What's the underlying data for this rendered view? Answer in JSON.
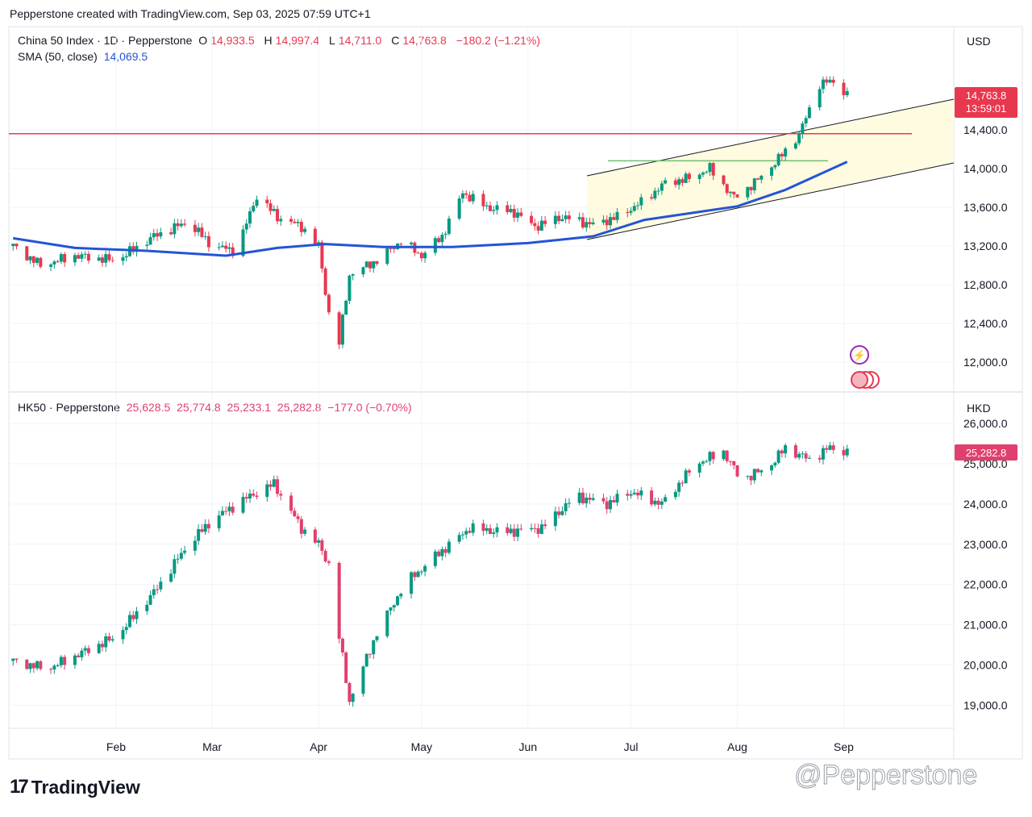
{
  "header": "Pepperstone created with TradingView.com, Sep 03, 2025 07:59 UTC+1",
  "branding": {
    "logo_text": "TradingView",
    "watermark": "@Pepperstone"
  },
  "colors": {
    "up": "#089981",
    "down": "#e8384f",
    "hk_down": "#e0406e",
    "sma": "#2454d6",
    "resistance": "#e8384f",
    "support": "#6fbf73",
    "channel_fill": "#fffbe0"
  },
  "top_panel": {
    "symbol": "China 50 Index · 1D · Pepperstone",
    "o_label": "O",
    "o": "14,933.5",
    "h_label": "H",
    "h": "14,997.4",
    "l_label": "L",
    "l": "14,711.0",
    "c_label": "C",
    "c": "14,763.8",
    "change": "−180.2 (−1.21%)",
    "sma_label": "SMA (50, close)",
    "sma_value": "14,069.5",
    "currency": "USD",
    "last_price": "14,763.8",
    "countdown": "13:59:01",
    "y_ticks": [
      "14,400.0",
      "14,000.0",
      "13,600.0",
      "13,200.0",
      "12,800.0",
      "12,400.0",
      "12,000.0"
    ],
    "resistance_level": 14360,
    "flag_level": 14080
  },
  "bottom_panel": {
    "symbol": "HK50 · Pepperstone",
    "o": "25,628.5",
    "h": "25,774.8",
    "l": "25,233.1",
    "c": "25,282.8",
    "change": "−177.0 (−0.70%)",
    "currency": "HKD",
    "last_price": "25,282.8",
    "y_ticks": [
      "26,000.0",
      "25,000.0",
      "24,000.0",
      "23,000.0",
      "22,000.0",
      "21,000.0",
      "20,000.0",
      "19,000.0"
    ]
  },
  "x_axis": {
    "labels": [
      "Feb",
      "Mar",
      "Apr",
      "May",
      "Jun",
      "Jul",
      "Aug",
      "Sep"
    ]
  },
  "chart_data": [
    {
      "type": "candlestick",
      "panel": "China 50 Index",
      "y_range": [
        11800,
        15000
      ],
      "close_points": [
        [
          "2025-01-02",
          13200
        ],
        [
          "2025-01-10",
          13000
        ],
        [
          "2025-01-20",
          13100
        ],
        [
          "2025-02-01",
          13050
        ],
        [
          "2025-02-12",
          13300
        ],
        [
          "2025-02-22",
          13450
        ],
        [
          "2025-03-01",
          13200
        ],
        [
          "2025-03-08",
          13150
        ],
        [
          "2025-03-14",
          13720
        ],
        [
          "2025-03-20",
          13500
        ],
        [
          "2025-03-27",
          13400
        ],
        [
          "2025-04-01",
          13200
        ],
        [
          "2025-04-04",
          12500
        ],
        [
          "2025-04-07",
          12200
        ],
        [
          "2025-04-10",
          12900
        ],
        [
          "2025-04-18",
          13050
        ],
        [
          "2025-04-25",
          13250
        ],
        [
          "2025-05-01",
          13100
        ],
        [
          "2025-05-07",
          13300
        ],
        [
          "2025-05-13",
          13750
        ],
        [
          "2025-05-20",
          13600
        ],
        [
          "2025-05-28",
          13550
        ],
        [
          "2025-06-03",
          13400
        ],
        [
          "2025-06-11",
          13500
        ],
        [
          "2025-06-20",
          13420
        ],
        [
          "2025-06-27",
          13500
        ],
        [
          "2025-07-04",
          13650
        ],
        [
          "2025-07-11",
          13850
        ],
        [
          "2025-07-18",
          13900
        ],
        [
          "2025-07-24",
          14000
        ],
        [
          "2025-07-31",
          13700
        ],
        [
          "2025-08-06",
          13850
        ],
        [
          "2025-08-13",
          14100
        ],
        [
          "2025-08-19",
          14350
        ],
        [
          "2025-08-25",
          14880
        ],
        [
          "2025-08-29",
          14900
        ],
        [
          "2025-09-02",
          14763.8
        ]
      ],
      "sma50_points": [
        [
          "2025-01-02",
          13280
        ],
        [
          "2025-01-20",
          13180
        ],
        [
          "2025-02-10",
          13150
        ],
        [
          "2025-03-05",
          13100
        ],
        [
          "2025-03-20",
          13180
        ],
        [
          "2025-04-03",
          13220
        ],
        [
          "2025-04-20",
          13190
        ],
        [
          "2025-05-10",
          13190
        ],
        [
          "2025-06-01",
          13230
        ],
        [
          "2025-06-20",
          13300
        ],
        [
          "2025-07-05",
          13470
        ],
        [
          "2025-08-01",
          13610
        ],
        [
          "2025-08-15",
          13780
        ],
        [
          "2025-09-02",
          14069.5
        ]
      ]
    },
    {
      "type": "candlestick",
      "panel": "HK50",
      "y_range": [
        18500,
        26200
      ],
      "close_points": [
        [
          "2025-01-02",
          20100
        ],
        [
          "2025-01-12",
          19900
        ],
        [
          "2025-01-22",
          20300
        ],
        [
          "2025-02-01",
          20700
        ],
        [
          "2025-02-12",
          21800
        ],
        [
          "2025-02-22",
          23000
        ],
        [
          "2025-03-01",
          23600
        ],
        [
          "2025-03-10",
          24100
        ],
        [
          "2025-03-19",
          24500
        ],
        [
          "2025-03-27",
          23400
        ],
        [
          "2025-04-01",
          23000
        ],
        [
          "2025-04-04",
          22500
        ],
        [
          "2025-04-07",
          20700
        ],
        [
          "2025-04-10",
          19100
        ],
        [
          "2025-04-18",
          20800
        ],
        [
          "2025-04-26",
          22000
        ],
        [
          "2025-05-05",
          22700
        ],
        [
          "2025-05-15",
          23400
        ],
        [
          "2025-05-25",
          23300
        ],
        [
          "2025-06-05",
          23400
        ],
        [
          "2025-06-15",
          24200
        ],
        [
          "2025-06-24",
          24000
        ],
        [
          "2025-07-01",
          24300
        ],
        [
          "2025-07-10",
          24000
        ],
        [
          "2025-07-20",
          25000
        ],
        [
          "2025-07-28",
          25300
        ],
        [
          "2025-08-02",
          24600
        ],
        [
          "2025-08-10",
          24900
        ],
        [
          "2025-08-15",
          25400
        ],
        [
          "2025-08-22",
          25100
        ],
        [
          "2025-08-28",
          25400
        ],
        [
          "2025-09-02",
          25282.8
        ]
      ]
    }
  ]
}
